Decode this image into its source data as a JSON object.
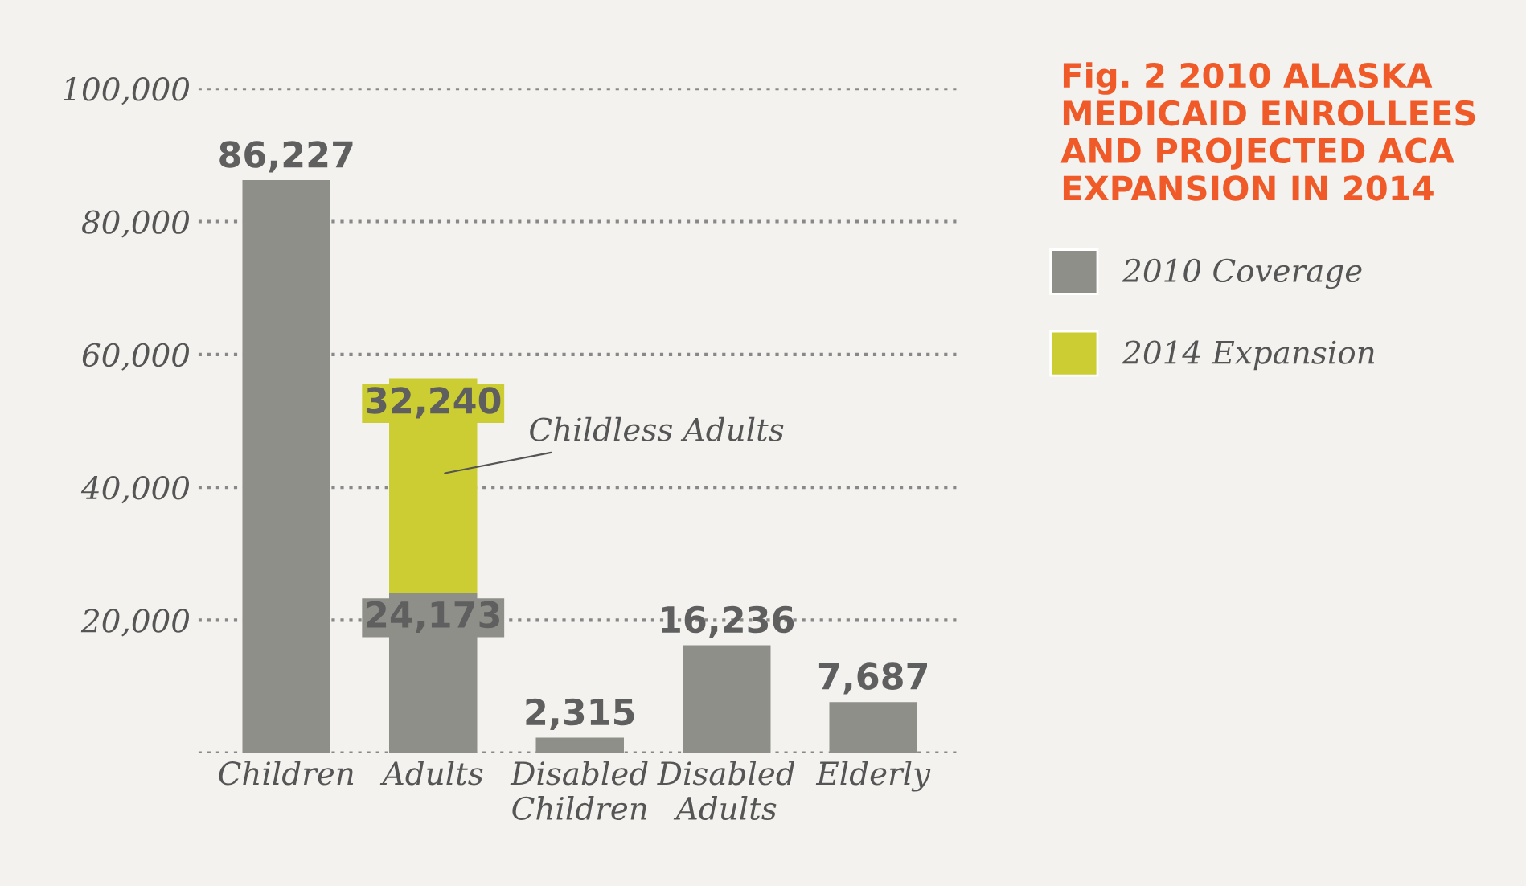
{
  "chart_data": {
    "type": "bar",
    "stacked": true,
    "title": "Fig. 2 2010 ALASKA MEDICAID ENROLLEES AND PROJECTED ACA EXPANSION IN 2014",
    "categories": [
      "Children",
      "Adults",
      "Disabled\nChildren",
      "Disabled\nAdults",
      "Elderly"
    ],
    "series": [
      {
        "name": "2010 Coverage",
        "color": "#8f8f8a",
        "values": [
          86227,
          24173,
          2315,
          16236,
          7687
        ],
        "value_labels": [
          "86,227",
          "24,173",
          "2,315",
          "16,236",
          "7,687"
        ]
      },
      {
        "name": "2014 Expansion",
        "color": "#cccc33",
        "values": [
          null,
          32240,
          null,
          null,
          null
        ],
        "value_labels": [
          null,
          "32,240",
          null,
          null,
          null
        ]
      }
    ],
    "ylim": [
      0,
      100000
    ],
    "yticks": [
      {
        "value": 0,
        "label": null
      },
      {
        "value": 20000,
        "label": "20,000"
      },
      {
        "value": 40000,
        "label": "40,000"
      },
      {
        "value": 60000,
        "label": "60,000"
      },
      {
        "value": 80000,
        "label": "80,000"
      },
      {
        "value": 100000,
        "label": "100,000"
      }
    ],
    "grid": "y",
    "legend": "right",
    "annotations": [
      "Childless Adults"
    ]
  }
}
